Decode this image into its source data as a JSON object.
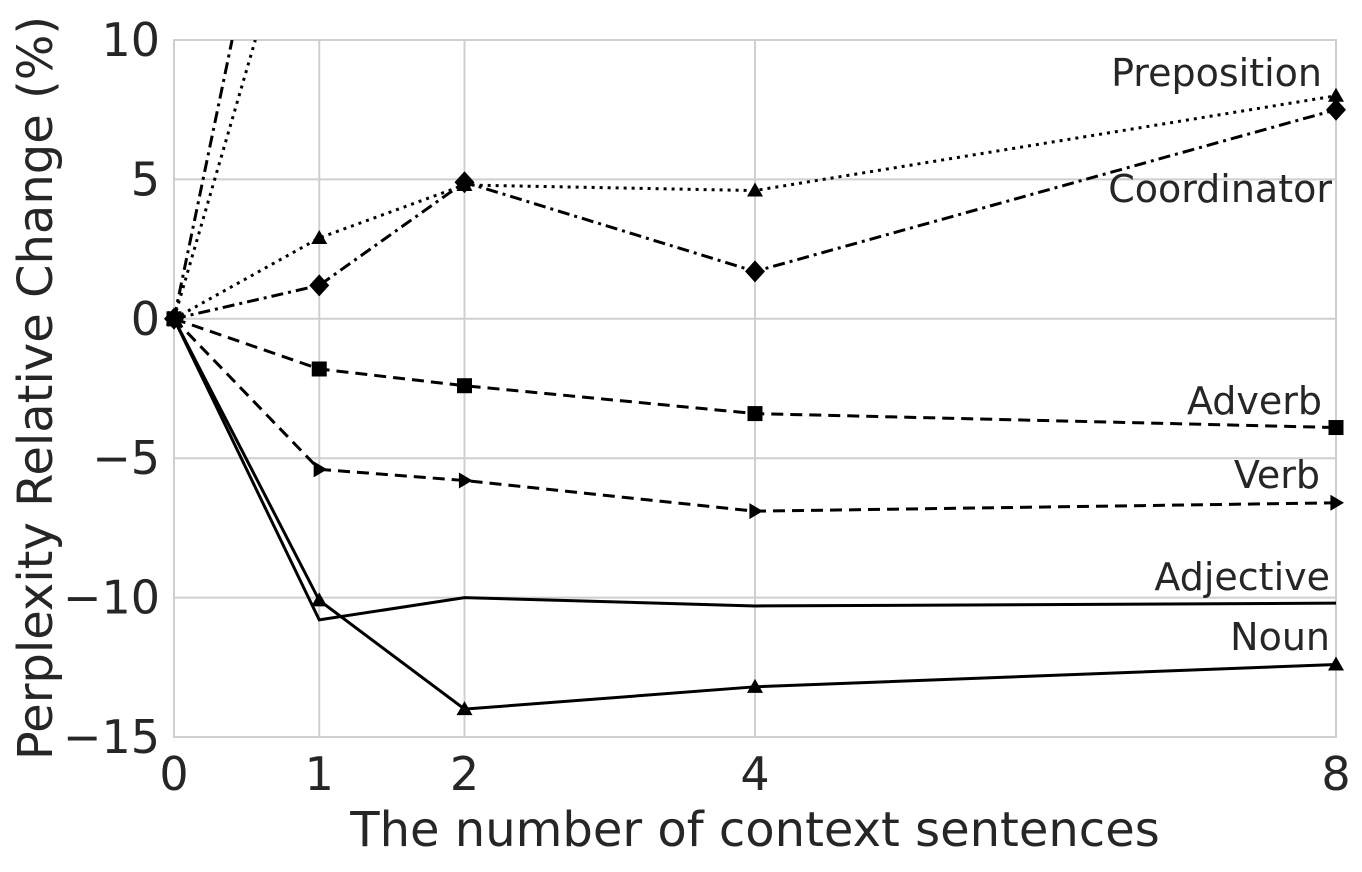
{
  "chart_data": {
    "type": "line",
    "title": "",
    "xlabel": "The number of context sentences",
    "ylabel": "Perplexity Relative Change (%)",
    "x": [
      0,
      1,
      2,
      4,
      8
    ],
    "x_ticks": [
      "0",
      "1",
      "2",
      "4",
      "8"
    ],
    "y_ticks": [
      "10",
      "5",
      "0",
      "−5",
      "−10",
      "−15"
    ],
    "y_tick_values": [
      10,
      5,
      0,
      -5,
      -10,
      -15
    ],
    "xlim": [
      0,
      8
    ],
    "ylim": [
      -15,
      10
    ],
    "grid": true,
    "series": [
      {
        "name": "Preposition",
        "values": [
          0,
          2.9,
          4.8,
          4.6,
          8.0
        ],
        "line_style": "dotted",
        "marker": "triangle-up"
      },
      {
        "name": "Coordinator",
        "values": [
          0,
          1.2,
          4.9,
          1.7,
          7.5
        ],
        "line_style": "dashdot",
        "marker": "diamond"
      },
      {
        "name": "Adverb",
        "values": [
          0,
          -1.8,
          -2.4,
          -3.4,
          -3.9
        ],
        "line_style": "dashed",
        "marker": "square"
      },
      {
        "name": "Verb",
        "values": [
          0,
          -5.4,
          -5.8,
          -6.9,
          -6.6
        ],
        "line_style": "dashed",
        "marker": "triangle-right"
      },
      {
        "name": "Adjective",
        "values": [
          0,
          -10.8,
          -10.0,
          -10.3,
          -10.2
        ],
        "line_style": "solid",
        "marker": "none"
      },
      {
        "name": "Noun",
        "values": [
          0,
          -10.1,
          -14.0,
          -13.2,
          -12.4
        ],
        "line_style": "solid",
        "marker": "triangle-up"
      }
    ],
    "offscale_lines": [
      {
        "line_style": "dashdot",
        "x": [
          0,
          0.4
        ],
        "values": [
          0,
          10
        ]
      },
      {
        "line_style": "dotted",
        "x": [
          0,
          0.56
        ],
        "values": [
          0,
          10
        ]
      }
    ]
  }
}
